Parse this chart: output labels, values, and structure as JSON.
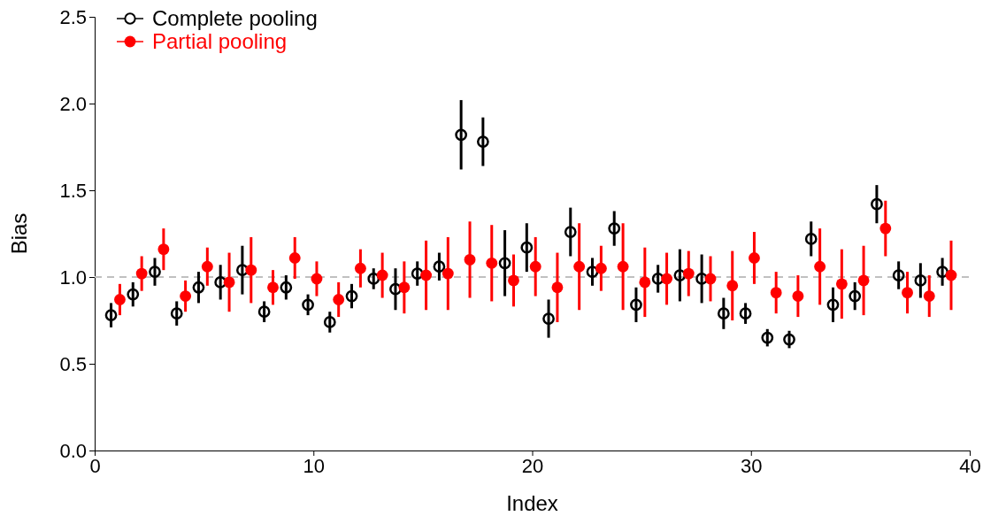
{
  "chart_data": {
    "type": "scatter",
    "xlabel": "Index",
    "ylabel": "Bias",
    "xlim": [
      0,
      40
    ],
    "xticks": [
      0,
      10,
      20,
      30,
      40
    ],
    "ylim": [
      0,
      2.5
    ],
    "yticks": [
      {
        "value": 0,
        "label": "0.0"
      },
      {
        "value": 0.5,
        "label": "0.5"
      },
      {
        "value": 1,
        "label": "1.0"
      },
      {
        "value": 1.5,
        "label": "1.5"
      },
      {
        "value": 2,
        "label": "2.0"
      },
      {
        "value": 2.5,
        "label": "2.5"
      }
    ],
    "grid": false,
    "legend": "top left",
    "marker": "circle",
    "ref_lines": [
      {
        "axis": "y",
        "value": 1,
        "color": "#c0c0c0",
        "line_style": "dashed"
      }
    ],
    "series": [
      {
        "name": "Complete pooling",
        "color": "#000000",
        "x": [
          0.75,
          1.75,
          2.75,
          3.75,
          4.75,
          5.75,
          6.75,
          7.75,
          8.75,
          9.75,
          10.75,
          11.75,
          12.75,
          13.75,
          14.75,
          15.75,
          16.75,
          17.75,
          18.75,
          19.75,
          20.75,
          21.75,
          22.75,
          23.75,
          24.75,
          25.75,
          26.75,
          27.75,
          28.75,
          29.75,
          30.75,
          31.75,
          32.75,
          33.75,
          34.75,
          35.75,
          36.75,
          37.75,
          38.75
        ],
        "values": [
          0.78,
          0.9,
          1.03,
          0.79,
          0.94,
          0.97,
          1.04,
          0.8,
          0.94,
          0.84,
          0.74,
          0.89,
          0.99,
          0.93,
          1.02,
          1.06,
          1.82,
          1.78,
          1.08,
          1.17,
          0.76,
          1.26,
          1.03,
          1.28,
          0.84,
          0.99,
          1.01,
          0.99,
          0.79,
          0.79,
          0.65,
          0.64,
          1.22,
          0.84,
          0.89,
          1.42,
          1.01,
          0.98,
          1.03
        ],
        "errors": [
          0.07,
          0.07,
          0.08,
          0.07,
          0.09,
          0.1,
          0.14,
          0.06,
          0.07,
          0.06,
          0.06,
          0.07,
          0.06,
          0.12,
          0.07,
          0.08,
          0.2,
          0.14,
          0.19,
          0.14,
          0.11,
          0.14,
          0.08,
          0.1,
          0.1,
          0.08,
          0.15,
          0.14,
          0.09,
          0.06,
          0.05,
          0.05,
          0.1,
          0.1,
          0.08,
          0.11,
          0.08,
          0.1,
          0.08
        ]
      },
      {
        "name": "Partial pooling",
        "color": "#ff0000",
        "x": [
          1.15,
          2.15,
          3.15,
          4.15,
          5.15,
          6.15,
          7.15,
          8.15,
          9.15,
          10.15,
          11.15,
          12.15,
          13.15,
          14.15,
          15.15,
          16.15,
          17.15,
          18.15,
          19.15,
          20.15,
          21.15,
          22.15,
          23.15,
          24.15,
          25.15,
          26.15,
          27.15,
          28.15,
          29.15,
          30.15,
          31.15,
          32.15,
          33.15,
          34.15,
          35.15,
          36.15,
          37.15,
          38.15,
          39.15
        ],
        "values": [
          0.87,
          1.02,
          1.16,
          0.89,
          1.06,
          0.97,
          1.04,
          0.94,
          1.11,
          0.99,
          0.87,
          1.05,
          1.01,
          0.94,
          1.01,
          1.02,
          1.1,
          1.08,
          0.98,
          1.06,
          0.94,
          1.06,
          1.05,
          1.06,
          0.97,
          0.99,
          1.02,
          0.99,
          0.95,
          1.11,
          0.91,
          0.89,
          1.06,
          0.96,
          0.98,
          1.28,
          0.91,
          0.89,
          1.01
        ],
        "errors": [
          0.09,
          0.1,
          0.12,
          0.09,
          0.11,
          0.17,
          0.19,
          0.1,
          0.12,
          0.1,
          0.1,
          0.11,
          0.13,
          0.15,
          0.2,
          0.21,
          0.22,
          0.22,
          0.15,
          0.17,
          0.2,
          0.25,
          0.13,
          0.25,
          0.2,
          0.15,
          0.13,
          0.13,
          0.2,
          0.15,
          0.12,
          0.12,
          0.22,
          0.2,
          0.2,
          0.16,
          0.12,
          0.12,
          0.2
        ]
      }
    ]
  }
}
